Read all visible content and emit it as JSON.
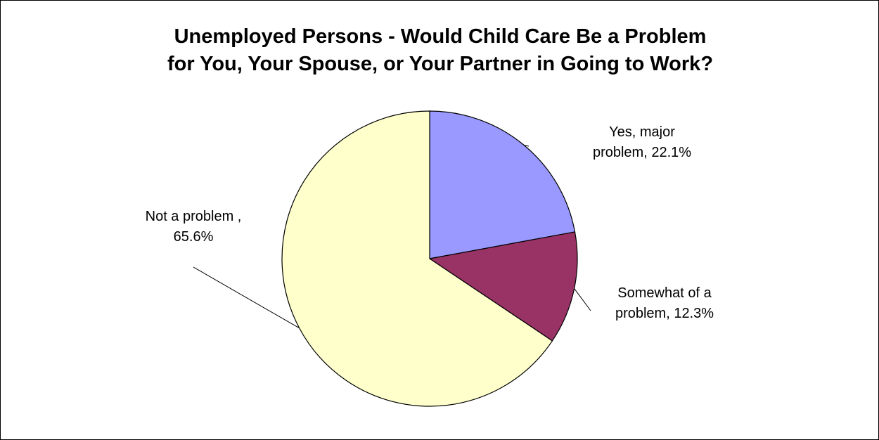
{
  "chart_data": {
    "type": "pie",
    "title": [
      "Unemployed Persons - Would Child Care Be a Problem",
      "for You, Your Spouse, or Your Partner in Going to Work?"
    ],
    "slices": [
      {
        "name": "Yes, major problem",
        "value": 22.1,
        "color": "#9999ff",
        "label": [
          "Yes, major",
          "problem, 22.1%"
        ]
      },
      {
        "name": "Somewhat of a problem",
        "value": 12.3,
        "color": "#993366",
        "label": [
          "Somewhat of a",
          "problem, 12.3%"
        ]
      },
      {
        "name": "Not a problem",
        "value": 65.6,
        "color": "#ffffcc",
        "label": [
          "Not a problem ,",
          "65.6%"
        ]
      }
    ],
    "start_angle": "12 o'clock",
    "direction": "clockwise",
    "legend": "none",
    "data_labels": "category name and percentage, outside with leader lines"
  }
}
